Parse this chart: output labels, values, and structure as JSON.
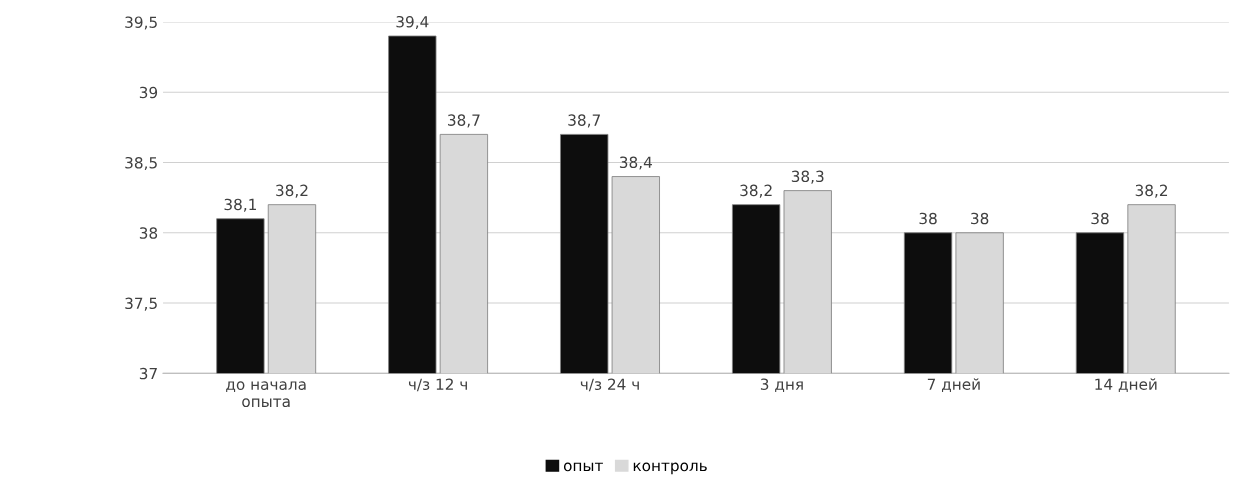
{
  "chart_data": {
    "type": "bar",
    "categories": [
      "до начала\nопыта",
      "ч/з 12 ч",
      "ч/з 24 ч",
      "3 дня",
      "7 дней",
      "14 дней"
    ],
    "series": [
      {
        "name": "опыт",
        "color": "#0d0d0d",
        "values": [
          38.1,
          39.4,
          38.7,
          38.2,
          38,
          38
        ],
        "value_labels": [
          "38,1",
          "39,4",
          "38,7",
          "38,2",
          "38",
          "38"
        ]
      },
      {
        "name": "контроль",
        "color": "#d9d9d9",
        "values": [
          38.2,
          38.7,
          38.4,
          38.3,
          38,
          38.2
        ],
        "value_labels": [
          "38,2",
          "38,7",
          "38,4",
          "38,3",
          "38",
          "38,2"
        ]
      }
    ],
    "ylim": [
      37,
      39.5
    ],
    "yticks": [
      37,
      {
        "value": 37.5,
        "label": "37,5"
      },
      38,
      {
        "value": 38.5,
        "label": "38,5"
      },
      39,
      {
        "value": 39.5,
        "label": "39,5"
      }
    ],
    "grid": "y",
    "legend": "bottom"
  }
}
